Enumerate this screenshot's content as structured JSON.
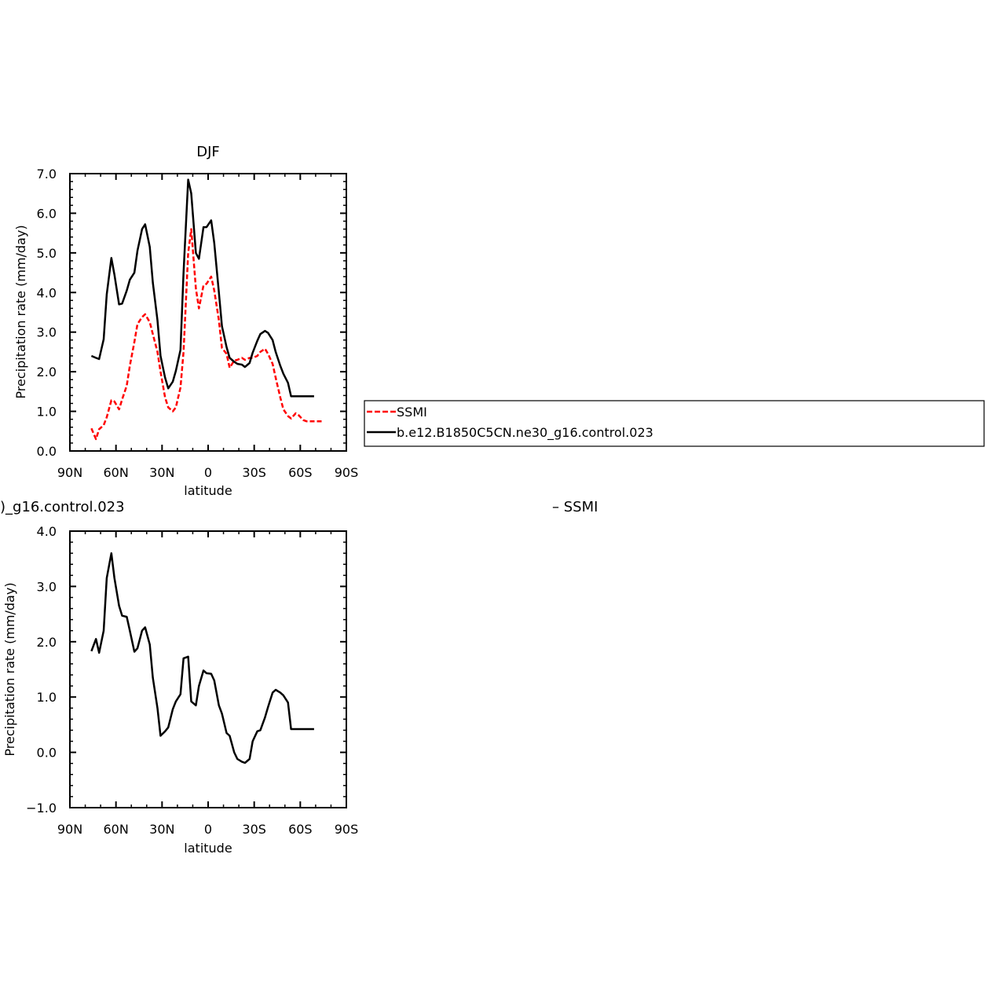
{
  "chart_data": [
    {
      "type": "line",
      "title": "DJF",
      "xlabel": "latitude",
      "ylabel": "Precipitation rate (mm/day)",
      "xlim": [
        90,
        -90
      ],
      "ylim": [
        0,
        7
      ],
      "x_ticks": [
        90,
        60,
        30,
        0,
        -30,
        -60,
        -90
      ],
      "x_tick_labels": [
        "90N",
        "60N",
        "30N",
        "0",
        "30S",
        "60S",
        "90S"
      ],
      "y_ticks": [
        0,
        1,
        2,
        3,
        4,
        5,
        6,
        7
      ],
      "y_tick_labels": [
        "0.0",
        "1.0",
        "2.0",
        "3.0",
        "4.0",
        "5.0",
        "6.0",
        "7.0"
      ],
      "grid": false,
      "legend": {
        "position": "right",
        "entries": [
          "SSMI",
          "b.e12.B1850C5CN.ne30_g16.control.023"
        ]
      },
      "series": [
        {
          "name": "SSMI",
          "color": "#ff0000",
          "dash": "dashed",
          "x": [
            76,
            73,
            71,
            68,
            66,
            63,
            61,
            58,
            56,
            53,
            51,
            48,
            46,
            43,
            41,
            38,
            36,
            33,
            31,
            28,
            26,
            23,
            21,
            18,
            16,
            13,
            11,
            8,
            6,
            3,
            1,
            -2,
            -4,
            -7,
            -9,
            -12,
            -14,
            -17,
            -19,
            -22,
            -24,
            -27,
            -29,
            -32,
            -34,
            -37,
            -39,
            -42,
            -44,
            -47,
            -49,
            -52,
            -54,
            -57,
            -59,
            -62,
            -64,
            -67,
            -69,
            -72,
            -74
          ],
          "y": [
            0.57,
            0.3,
            0.55,
            0.65,
            0.85,
            1.28,
            1.25,
            1.05,
            1.3,
            1.65,
            2.15,
            2.75,
            3.2,
            3.38,
            3.45,
            3.25,
            2.95,
            2.5,
            2.0,
            1.35,
            1.1,
            1.0,
            1.1,
            1.6,
            2.5,
            5.0,
            5.6,
            4.1,
            3.6,
            4.18,
            4.22,
            4.4,
            4.05,
            3.3,
            2.6,
            2.45,
            2.1,
            2.28,
            2.3,
            2.35,
            2.3,
            2.35,
            2.35,
            2.4,
            2.5,
            2.58,
            2.45,
            2.2,
            1.85,
            1.35,
            1.05,
            0.88,
            0.82,
            0.95,
            0.9,
            0.78,
            0.75,
            0.75,
            0.75,
            0.75,
            0.75
          ]
        },
        {
          "name": "b.e12.B1850C5CN.ne30_g16.control.023",
          "color": "#000000",
          "dash": "solid",
          "x": [
            76,
            73,
            71,
            68,
            66,
            63,
            61,
            58,
            56,
            53,
            51,
            48,
            46,
            43,
            41,
            38,
            36,
            33,
            31,
            28,
            26,
            23,
            21,
            18,
            16,
            13,
            11,
            8,
            6,
            3,
            1,
            -2,
            -4,
            -7,
            -9,
            -12,
            -14,
            -17,
            -19,
            -22,
            -24,
            -27,
            -29,
            -32,
            -34,
            -37,
            -39,
            -42,
            -44,
            -47,
            -49,
            -52,
            -54,
            -57,
            -59,
            -62,
            -64,
            -67,
            -69
          ],
          "y": [
            2.4,
            2.35,
            2.32,
            2.82,
            3.95,
            4.87,
            4.45,
            3.7,
            3.72,
            4.05,
            4.32,
            4.5,
            5.05,
            5.6,
            5.72,
            5.15,
            4.25,
            3.3,
            2.4,
            1.85,
            1.58,
            1.75,
            2.02,
            2.55,
            4.5,
            6.85,
            6.5,
            5.0,
            4.85,
            5.65,
            5.65,
            5.82,
            5.25,
            4.0,
            3.15,
            2.62,
            2.35,
            2.25,
            2.2,
            2.18,
            2.12,
            2.22,
            2.48,
            2.78,
            2.95,
            3.03,
            2.98,
            2.8,
            2.5,
            2.15,
            1.95,
            1.72,
            1.38,
            1.38,
            1.38,
            1.38,
            1.38,
            1.38,
            1.38
          ]
        }
      ]
    },
    {
      "type": "line",
      "title": ")_g16.control.023",
      "title_right": "– SSMI",
      "xlabel": "latitude",
      "ylabel": "Precipitation rate (mm/day)",
      "xlim": [
        90,
        -90
      ],
      "ylim": [
        -1,
        4
      ],
      "x_ticks": [
        90,
        60,
        30,
        0,
        -30,
        -60,
        -90
      ],
      "x_tick_labels": [
        "90N",
        "60N",
        "30N",
        "0",
        "30S",
        "60S",
        "90S"
      ],
      "y_ticks": [
        -1,
        0,
        1,
        2,
        3,
        4
      ],
      "y_tick_labels": [
        "−1.0",
        "0.0",
        "1.0",
        "2.0",
        "3.0",
        "4.0"
      ],
      "grid": false,
      "series": [
        {
          "color": "#000000",
          "dash": "solid",
          "x": [
            76,
            73,
            71,
            68,
            66,
            63,
            61,
            58,
            56,
            53,
            51,
            48,
            46,
            43,
            41,
            38,
            36,
            33,
            31,
            28,
            26,
            23,
            21,
            18,
            16,
            13,
            11,
            8,
            6,
            3,
            1,
            -2,
            -4,
            -7,
            -9,
            -12,
            -14,
            -17,
            -19,
            -22,
            -24,
            -27,
            -29,
            -32,
            -34,
            -37,
            -39,
            -42,
            -44,
            -47,
            -49,
            -52,
            -54,
            -57,
            -59,
            -62,
            -64,
            -67,
            -69
          ],
          "y": [
            1.83,
            2.05,
            1.8,
            2.2,
            3.15,
            3.6,
            3.15,
            2.65,
            2.47,
            2.45,
            2.2,
            1.82,
            1.88,
            2.2,
            2.26,
            1.95,
            1.35,
            0.8,
            0.3,
            0.38,
            0.45,
            0.78,
            0.92,
            1.05,
            1.7,
            1.73,
            0.92,
            0.85,
            1.2,
            1.48,
            1.43,
            1.42,
            1.3,
            0.85,
            0.7,
            0.35,
            0.3,
            0.0,
            -0.12,
            -0.17,
            -0.19,
            -0.12,
            0.2,
            0.38,
            0.4,
            0.63,
            0.82,
            1.08,
            1.13,
            1.08,
            1.03,
            0.9,
            0.42,
            0.42,
            0.42,
            0.42,
            0.42,
            0.42,
            0.42
          ]
        }
      ]
    }
  ]
}
